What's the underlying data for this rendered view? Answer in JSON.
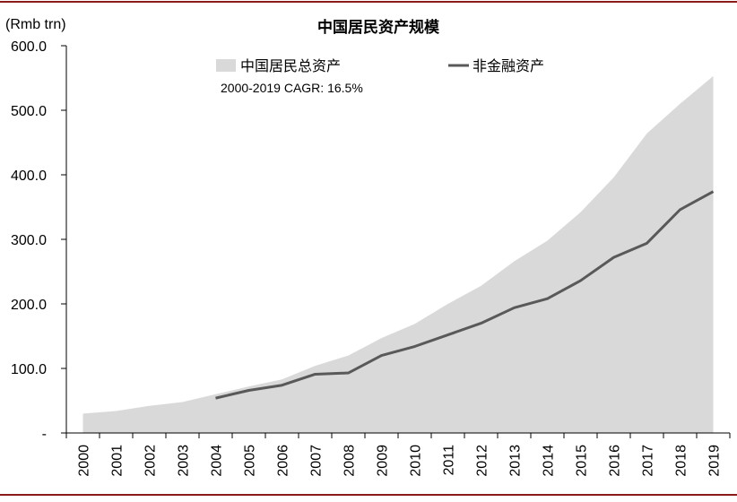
{
  "chart_data": {
    "type": "area",
    "title": "中国居民资产规模",
    "ylabel": "(Rmb trn)",
    "xlabel": "",
    "ylim": [
      0,
      600
    ],
    "yticks": [
      0,
      100,
      200,
      300,
      400,
      500,
      600
    ],
    "ytick_labels": [
      "-",
      "100.0",
      "200.0",
      "300.0",
      "400.0",
      "500.0",
      "600.0"
    ],
    "categories": [
      "2000",
      "2001",
      "2002",
      "2003",
      "2004",
      "2005",
      "2006",
      "2007",
      "2008",
      "2009",
      "2010",
      "2011",
      "2012",
      "2013",
      "2014",
      "2015",
      "2016",
      "2017",
      "2018",
      "2019"
    ],
    "series": [
      {
        "name": "中国居民总资产",
        "kind": "area",
        "color": "#d9d9d9",
        "values": [
          30,
          34,
          42,
          48,
          60,
          72,
          83,
          104,
          120,
          147,
          169,
          200,
          228,
          266,
          298,
          342,
          396,
          464,
          510,
          553
        ]
      },
      {
        "name": "非金融资产",
        "kind": "line",
        "color": "#595959",
        "values": [
          null,
          null,
          null,
          null,
          54,
          66,
          74,
          91,
          93,
          120,
          134,
          152,
          170,
          194,
          208,
          236,
          272,
          294,
          346,
          374
        ]
      }
    ],
    "annotation": "2000-2019 CAGR: 16.5%",
    "legend_position": "top",
    "grid": false,
    "border_color": "#8b1a1a"
  }
}
